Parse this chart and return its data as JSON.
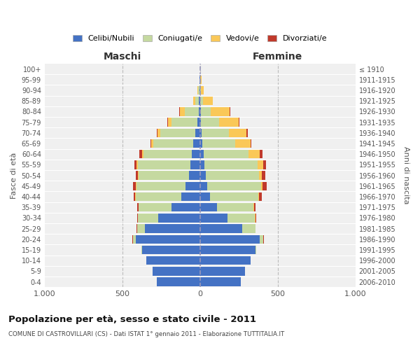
{
  "age_groups": [
    "0-4",
    "5-9",
    "10-14",
    "15-19",
    "20-24",
    "25-29",
    "30-34",
    "35-39",
    "40-44",
    "45-49",
    "50-54",
    "55-59",
    "60-64",
    "65-69",
    "70-74",
    "75-79",
    "80-84",
    "85-89",
    "90-94",
    "95-99",
    "100+"
  ],
  "birth_years": [
    "2006-2010",
    "2001-2005",
    "1996-2000",
    "1991-1995",
    "1986-1990",
    "1981-1985",
    "1976-1980",
    "1971-1975",
    "1966-1970",
    "1961-1965",
    "1956-1960",
    "1951-1955",
    "1946-1950",
    "1941-1945",
    "1936-1940",
    "1931-1935",
    "1926-1930",
    "1921-1925",
    "1916-1920",
    "1911-1915",
    "≤ 1910"
  ],
  "maschi": {
    "celibi": [
      280,
      305,
      345,
      375,
      415,
      355,
      270,
      185,
      120,
      95,
      72,
      62,
      55,
      45,
      30,
      18,
      10,
      7,
      4,
      2,
      1
    ],
    "coniugati": [
      0,
      1,
      1,
      3,
      18,
      50,
      130,
      210,
      295,
      315,
      325,
      340,
      310,
      255,
      225,
      165,
      88,
      22,
      7,
      2,
      0
    ],
    "vedovi": [
      0,
      0,
      0,
      0,
      0,
      0,
      1,
      1,
      2,
      2,
      4,
      5,
      10,
      14,
      18,
      22,
      32,
      16,
      4,
      1,
      0
    ],
    "divorziati": [
      0,
      0,
      0,
      0,
      1,
      2,
      5,
      8,
      12,
      18,
      12,
      15,
      15,
      5,
      5,
      5,
      2,
      1,
      0,
      0,
      0
    ]
  },
  "femmine": {
    "nubili": [
      260,
      290,
      325,
      355,
      385,
      270,
      178,
      110,
      65,
      48,
      35,
      28,
      22,
      16,
      10,
      7,
      5,
      3,
      2,
      1,
      0
    ],
    "coniugate": [
      0,
      1,
      2,
      5,
      22,
      85,
      175,
      235,
      310,
      345,
      345,
      340,
      290,
      210,
      175,
      115,
      62,
      14,
      4,
      2,
      0
    ],
    "vedove": [
      0,
      0,
      0,
      0,
      1,
      1,
      2,
      3,
      5,
      10,
      18,
      38,
      70,
      98,
      115,
      125,
      125,
      65,
      18,
      5,
      0
    ],
    "divorziate": [
      0,
      0,
      0,
      0,
      1,
      2,
      5,
      8,
      18,
      28,
      20,
      18,
      18,
      5,
      5,
      5,
      2,
      1,
      0,
      0,
      0
    ]
  },
  "colors": {
    "celibi": "#4472C4",
    "coniugati": "#C5D9A0",
    "vedovi": "#FAC858",
    "divorziati": "#C0392B"
  },
  "xlim": 1000,
  "title": "Popolazione per età, sesso e stato civile - 2011",
  "subtitle": "COMUNE DI CASTROVILLARI (CS) - Dati ISTAT 1° gennaio 2011 - Elaborazione TUTTITALIA.IT",
  "ylabel_left": "Fasce di età",
  "ylabel_right": "Anni di nascita",
  "xlabel_maschi": "Maschi",
  "xlabel_femmine": "Femmine",
  "legend_labels": [
    "Celibi/Nubili",
    "Coniugati/e",
    "Vedovi/e",
    "Divorziati/e"
  ],
  "top_label": "≤ 1910",
  "top_age": "100+"
}
